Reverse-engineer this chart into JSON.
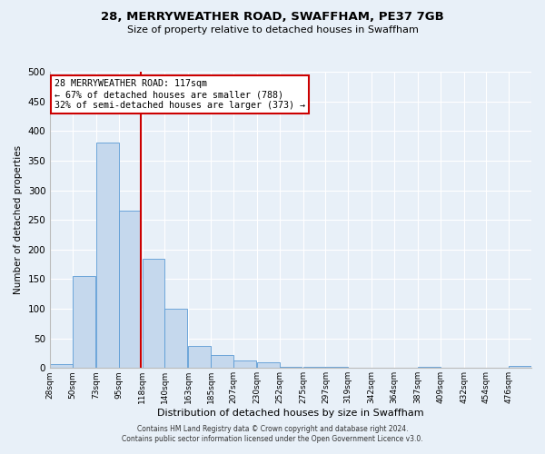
{
  "title": "28, MERRYWEATHER ROAD, SWAFFHAM, PE37 7GB",
  "subtitle": "Size of property relative to detached houses in Swaffham",
  "xlabel": "Distribution of detached houses by size in Swaffham",
  "ylabel": "Number of detached properties",
  "bar_color": "#c5d8ed",
  "bar_edge_color": "#5b9bd5",
  "bin_labels": [
    "28sqm",
    "50sqm",
    "73sqm",
    "95sqm",
    "118sqm",
    "140sqm",
    "163sqm",
    "185sqm",
    "207sqm",
    "230sqm",
    "252sqm",
    "275sqm",
    "297sqm",
    "319sqm",
    "342sqm",
    "364sqm",
    "387sqm",
    "409sqm",
    "432sqm",
    "454sqm",
    "476sqm"
  ],
  "bar_heights": [
    6,
    155,
    380,
    265,
    185,
    100,
    37,
    22,
    13,
    10,
    2,
    2,
    2,
    0,
    0,
    0,
    2,
    0,
    0,
    0,
    3
  ],
  "bin_edges": [
    28,
    50,
    73,
    95,
    118,
    140,
    163,
    185,
    207,
    230,
    252,
    275,
    297,
    319,
    342,
    364,
    387,
    409,
    432,
    454,
    476
  ],
  "bin_width": 22,
  "vline_x": 117,
  "vline_color": "#cc0000",
  "ylim": [
    0,
    500
  ],
  "yticks": [
    0,
    50,
    100,
    150,
    200,
    250,
    300,
    350,
    400,
    450,
    500
  ],
  "annotation_line1": "28 MERRYWEATHER ROAD: 117sqm",
  "annotation_line2": "← 67% of detached houses are smaller (788)",
  "annotation_line3": "32% of semi-detached houses are larger (373) →",
  "annotation_box_color": "#ffffff",
  "annotation_box_edge": "#cc0000",
  "footer_line1": "Contains HM Land Registry data © Crown copyright and database right 2024.",
  "footer_line2": "Contains public sector information licensed under the Open Government Licence v3.0.",
  "background_color": "#e8f0f8",
  "grid_color": "#ffffff"
}
